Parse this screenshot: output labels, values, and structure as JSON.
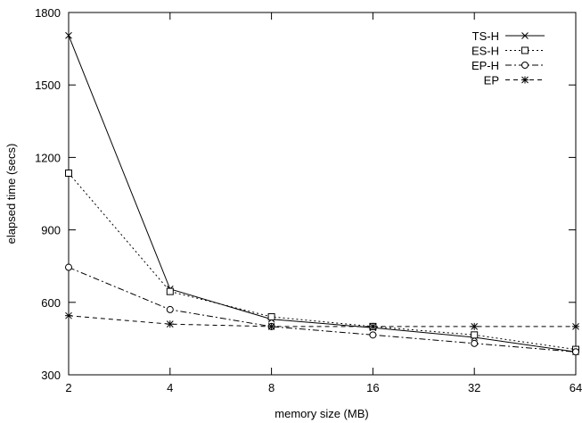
{
  "chart_data": {
    "type": "line",
    "xlabel": "memory size (MB)",
    "ylabel": "elapsed time (secs)",
    "x_scale": "log2",
    "x": [
      2,
      4,
      8,
      16,
      32,
      64
    ],
    "x_tick_labels": [
      "2",
      "4",
      "8",
      "16",
      "32",
      "64"
    ],
    "ylim": [
      300,
      1800
    ],
    "y_ticks": [
      300,
      600,
      900,
      1200,
      1500,
      1800
    ],
    "y_tick_labels": [
      "300",
      "600",
      "900",
      "1200",
      "1500",
      "1800"
    ],
    "grid": false,
    "legend_position": "top-right",
    "series": [
      {
        "name": "TS-H",
        "values": [
          1705,
          655,
          530,
          495,
          455,
          395
        ],
        "marker": "x",
        "dash": "solid"
      },
      {
        "name": "ES-H",
        "values": [
          1135,
          645,
          540,
          500,
          465,
          405
        ],
        "marker": "square",
        "dash": "dotted"
      },
      {
        "name": "EP-H",
        "values": [
          745,
          570,
          500,
          465,
          430,
          395
        ],
        "marker": "circle",
        "dash": "dashdot"
      },
      {
        "name": "EP",
        "values": [
          545,
          510,
          500,
          500,
          500,
          500
        ],
        "marker": "star",
        "dash": "dashed"
      }
    ]
  }
}
